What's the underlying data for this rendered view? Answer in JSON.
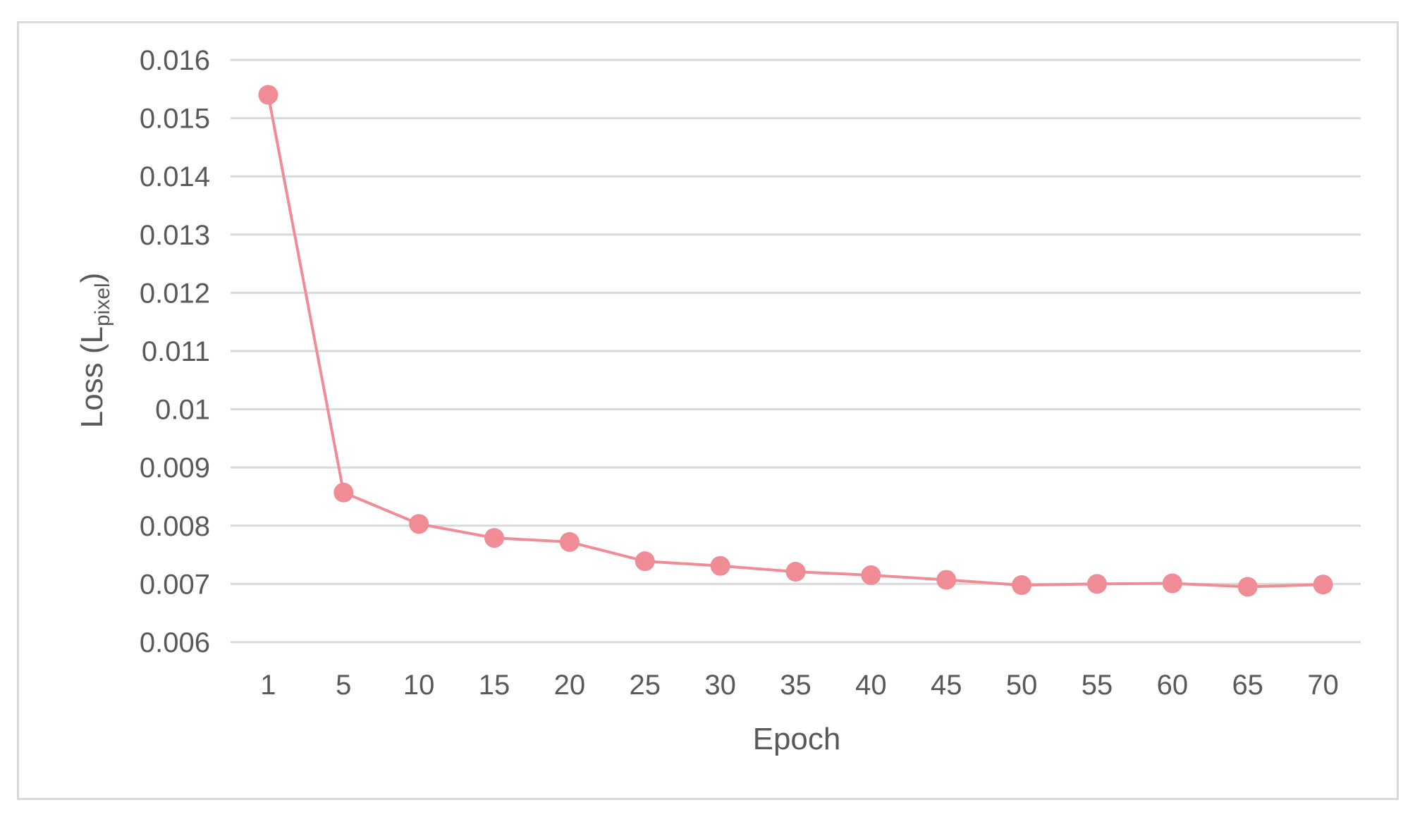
{
  "chart_data": {
    "type": "line",
    "title": "",
    "xlabel": "Epoch",
    "ylabel": {
      "prefix": "Loss (L",
      "subscript": "pixel",
      "suffix": ")"
    },
    "categories": [
      "1",
      "5",
      "10",
      "15",
      "20",
      "25",
      "30",
      "35",
      "40",
      "45",
      "50",
      "55",
      "60",
      "65",
      "70"
    ],
    "y_ticks": [
      "0.006",
      "0.007",
      "0.008",
      "0.009",
      "0.01",
      "0.011",
      "0.012",
      "0.013",
      "0.014",
      "0.015",
      "0.016"
    ],
    "ylim": [
      0.006,
      0.016
    ],
    "grid": true,
    "legend": "none",
    "series": [
      {
        "color": "#f08c96",
        "values": [
          0.0154,
          0.00857,
          0.00803,
          0.00779,
          0.00772,
          0.00739,
          0.00731,
          0.00721,
          0.00715,
          0.00707,
          0.00698,
          0.007,
          0.00701,
          0.00695,
          0.00699
        ]
      }
    ],
    "grid_color": "#d9d9d9",
    "frame_color": "#d9d9d9",
    "text_color": "#595959"
  }
}
